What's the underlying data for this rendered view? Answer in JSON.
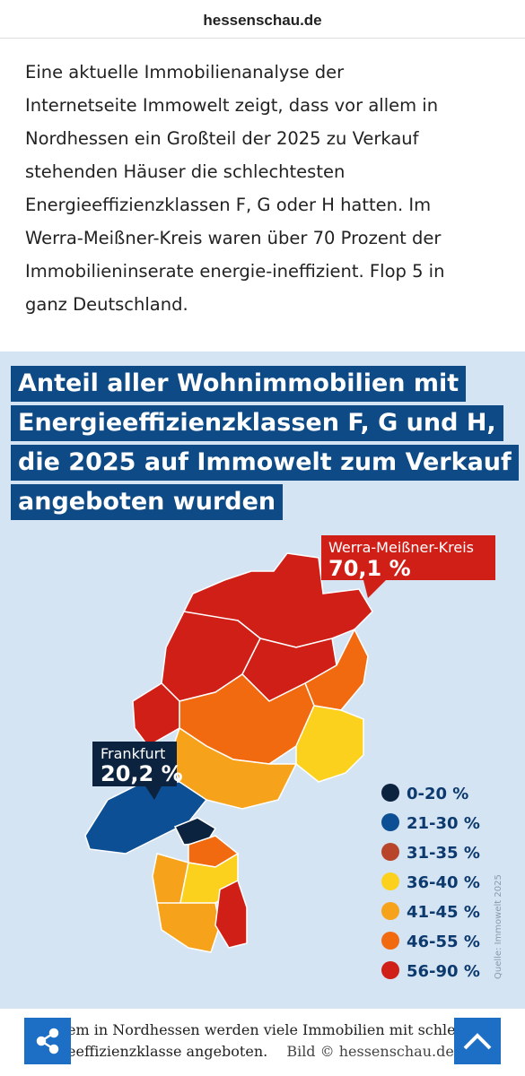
{
  "header": {
    "site": "hessenschau.de"
  },
  "article": {
    "lines": [
      "Eine aktuelle Immobilienanalyse der",
      "Internetseite Immowelt zeigt, dass vor allem in",
      "Nordhessen ein Großteil der 2025 zu Verkauf",
      "stehenden Häuser die schlechtesten",
      "Energieeffizienzklassen F, G oder H hatten. Im",
      "Werra-Meißner-Kreis waren über 70 Prozent der",
      "Immobilieninserate energie-ineffizient. Flop 5 in",
      "ganz Deutschland."
    ]
  },
  "graphic": {
    "title_lines": [
      "Anteil aller Wohnimmobilien mit",
      "Energieeffizienzklassen F, G und H,",
      "die 2025 auf Immowelt zum Verkauf",
      "angeboten wurden"
    ],
    "callouts": [
      {
        "name": "Werra-Meißner-Kreis",
        "value": "70,1 %"
      },
      {
        "name": "Frankfurt",
        "value": "20,2 %"
      }
    ],
    "legend": [
      {
        "label": "0-20 %",
        "color": "#0c2340"
      },
      {
        "label": "21-30 %",
        "color": "#0d4f94"
      },
      {
        "label": "31-35 %",
        "color": "#b8452a"
      },
      {
        "label": "36-40 %",
        "color": "#fbd11e"
      },
      {
        "label": "41-45 %",
        "color": "#f7a21b"
      },
      {
        "label": "46-55 %",
        "color": "#f26a10"
      },
      {
        "label": "56-90 %",
        "color": "#cf1f17"
      }
    ],
    "source": "Quelle: Immowelt 2025"
  },
  "caption": {
    "lines": [
      "em in Nordhessen werden viele Immobilien mit schlech",
      "eeffizienzklasse angeboten."
    ],
    "credit": "Bild © hessenschau.de"
  }
}
